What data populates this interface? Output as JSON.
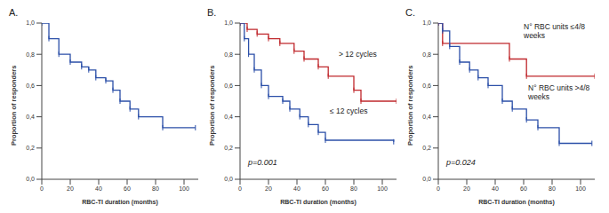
{
  "chart_data": [
    {
      "type": "line",
      "title": "A.",
      "xlabel": "RBC-TI duration (months)",
      "ylabel": "Proportion of responders",
      "xlim": [
        0,
        110
      ],
      "xticks": [
        0,
        20,
        40,
        60,
        80,
        100
      ],
      "ylim": [
        0,
        1
      ],
      "yticks": [
        {
          "value": 0,
          "label": "0,0"
        },
        {
          "value": 0.2,
          "label": "0,2"
        },
        {
          "value": 0.4,
          "label": "0,4"
        },
        {
          "value": 0.6,
          "label": "0,6"
        },
        {
          "value": 0.8,
          "label": "0,8"
        },
        {
          "value": 1,
          "label": "1,0"
        }
      ],
      "line_style": "step",
      "marker": "|",
      "series": [
        {
          "color": "#2b4fa8",
          "x": [
            0,
            5,
            12,
            20,
            28,
            33,
            38,
            45,
            50,
            55,
            62,
            68,
            85,
            108
          ],
          "values": [
            1,
            0.9,
            0.8,
            0.75,
            0.72,
            0.7,
            0.65,
            0.63,
            0.57,
            0.5,
            0.45,
            0.4,
            0.33,
            0.33
          ]
        }
      ]
    },
    {
      "type": "line",
      "title": "B.",
      "xlabel": "RBC-TI duration (months)",
      "ylabel": "Proportion of responders",
      "xlim": [
        0,
        110
      ],
      "xticks": [
        0,
        20,
        40,
        60,
        80,
        100
      ],
      "ylim": [
        0,
        1
      ],
      "yticks": [
        {
          "value": 0,
          "label": "0,0"
        },
        {
          "value": 0.2,
          "label": "0,2"
        },
        {
          "value": 0.4,
          "label": "0,4"
        },
        {
          "value": 0.6,
          "label": "0,6"
        },
        {
          "value": 0.8,
          "label": "0,8"
        },
        {
          "value": 1,
          "label": "1,0"
        }
      ],
      "line_style": "step",
      "marker": "|",
      "annotations": [
        "p=0.001"
      ],
      "series": [
        {
          "name": "> 12 cycles",
          "color": "#c0282d",
          "x": [
            0,
            5,
            12,
            20,
            28,
            38,
            45,
            55,
            62,
            80,
            85,
            110
          ],
          "values": [
            1,
            0.96,
            0.93,
            0.9,
            0.87,
            0.82,
            0.77,
            0.72,
            0.66,
            0.57,
            0.5,
            0.5
          ]
        },
        {
          "name": "≤ 12 cycles",
          "color": "#2b4fa8",
          "x": [
            0,
            3,
            6,
            10,
            15,
            20,
            30,
            35,
            42,
            48,
            55,
            60,
            108
          ],
          "values": [
            1,
            0.9,
            0.8,
            0.7,
            0.6,
            0.53,
            0.5,
            0.45,
            0.4,
            0.35,
            0.3,
            0.25,
            0.24
          ]
        }
      ]
    },
    {
      "type": "line",
      "title": "C.",
      "xlabel": "RBC-TI duration (months)",
      "ylabel": "Proportion of responders",
      "xlim": [
        0,
        110
      ],
      "xticks": [
        0,
        20,
        40,
        60,
        80,
        100
      ],
      "ylim": [
        0,
        1
      ],
      "yticks": [
        {
          "value": 0,
          "label": "0,0"
        },
        {
          "value": 0.2,
          "label": "0,2"
        },
        {
          "value": 0.4,
          "label": "0,4"
        },
        {
          "value": 0.6,
          "label": "0,6"
        },
        {
          "value": 0.8,
          "label": "0,8"
        },
        {
          "value": 1,
          "label": "1,0"
        }
      ],
      "line_style": "step",
      "marker": "|",
      "annotations": [
        "p=0.024"
      ],
      "series": [
        {
          "name": "N° RBC units ≤4/8 weeks",
          "color": "#c0282d",
          "x": [
            0,
            3,
            50,
            62,
            110
          ],
          "values": [
            1,
            0.87,
            0.77,
            0.66,
            0.66
          ]
        },
        {
          "name": "N° RBC units >4/8 weeks",
          "color": "#2b4fa8",
          "x": [
            0,
            3,
            8,
            15,
            22,
            28,
            35,
            45,
            52,
            62,
            70,
            85,
            108
          ],
          "values": [
            1,
            0.95,
            0.85,
            0.75,
            0.7,
            0.65,
            0.6,
            0.5,
            0.45,
            0.38,
            0.33,
            0.23,
            0.23
          ]
        }
      ]
    }
  ]
}
